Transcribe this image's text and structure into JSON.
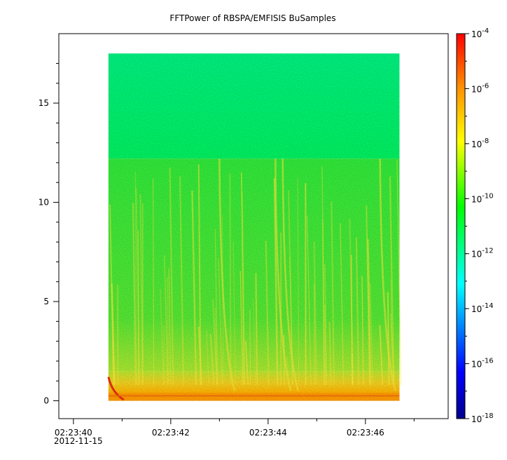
{
  "chart_data": {
    "type": "heatmap",
    "title": "FFTPower of RBSPA/EMFISIS  BuSamples",
    "xlabel": "",
    "ylabel": "",
    "x_ticks": [
      {
        "label": "02:23:40",
        "sublabel": "2012-11-15",
        "t": 40
      },
      {
        "label": "02:23:42",
        "sublabel": "",
        "t": 42
      },
      {
        "label": "02:23:44",
        "sublabel": "",
        "t": 44
      },
      {
        "label": "02:23:46",
        "sublabel": "",
        "t": 46
      }
    ],
    "x_minor_ticks": [
      41,
      43,
      45,
      47
    ],
    "xlim": [
      39.7,
      47.7
    ],
    "data_time_range": [
      40.72,
      46.7
    ],
    "y_ticks": [
      0,
      5,
      10,
      15
    ],
    "ylim": [
      -0.9,
      18.5
    ],
    "data_y_range": [
      0,
      17.5
    ],
    "colorbar": {
      "scale": "log",
      "range": [
        1e-18,
        0.0001
      ],
      "tick_base": "10",
      "tick_exponents": [
        "-4",
        "-6",
        "-8",
        "-10",
        "-12",
        "-14",
        "-16",
        "-18"
      ],
      "colors": [
        "#00008b",
        "#0000ff",
        "#00ffff",
        "#00ff00",
        "#ffff00",
        "#ff8000",
        "#ff0000"
      ]
    },
    "bands": [
      {
        "y_range": [
          12.2,
          17.5
        ],
        "level": -11.5,
        "color": "#00f070"
      },
      {
        "y_range": [
          1.5,
          12.2
        ],
        "level": -10.2,
        "color": "#33e633"
      },
      {
        "y_range": [
          0.3,
          1.5
        ],
        "level": -8.2,
        "color": "#f0d020"
      },
      {
        "y_range": [
          0,
          0.3
        ],
        "level": -6.5,
        "color": "#ff9a00"
      }
    ]
  }
}
